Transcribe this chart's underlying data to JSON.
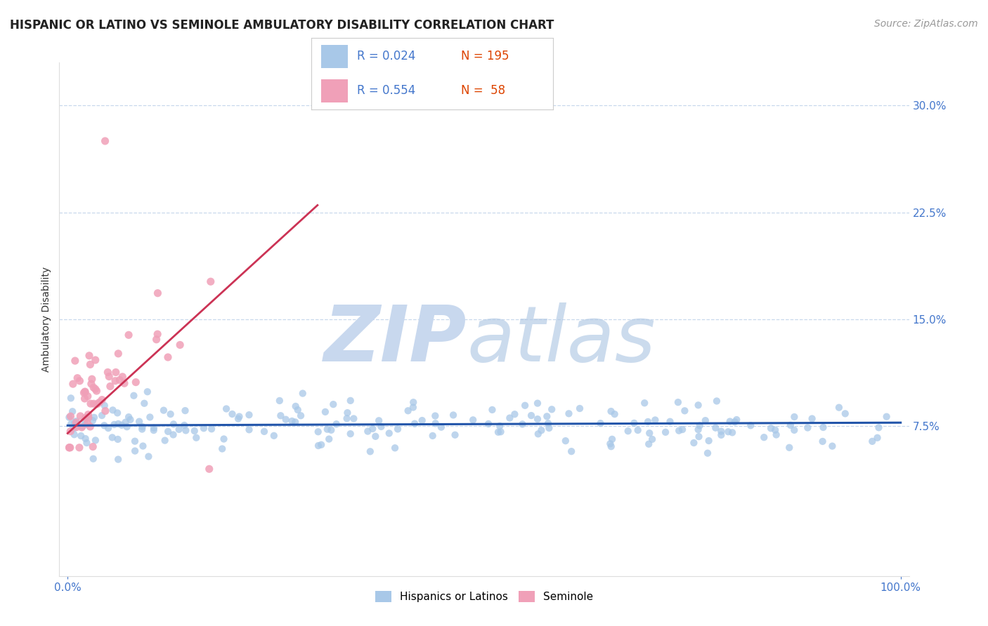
{
  "title": "HISPANIC OR LATINO VS SEMINOLE AMBULATORY DISABILITY CORRELATION CHART",
  "source": "Source: ZipAtlas.com",
  "ylabel": "Ambulatory Disability",
  "xlim": [
    -1,
    101
  ],
  "ylim": [
    -3,
    33
  ],
  "yticks": [
    7.5,
    15.0,
    22.5,
    30.0
  ],
  "ytick_labels": [
    "7.5%",
    "15.0%",
    "22.5%",
    "30.0%"
  ],
  "xtick_labels": [
    "0.0%",
    "100.0%"
  ],
  "legend_r_blue": "R = 0.024",
  "legend_n_blue": "N = 195",
  "legend_r_pink": "R = 0.554",
  "legend_n_pink": "N =  58",
  "blue_color": "#a8c8e8",
  "pink_color": "#f0a0b8",
  "blue_line_color": "#2255aa",
  "pink_line_color": "#cc3355",
  "pink_dash_color": "#cccccc",
  "axis_label_color": "#4477cc",
  "grid_color": "#c8d8ec",
  "watermark_zip_color": "#c8d8ee",
  "watermark_atlas_color": "#b0c8e4",
  "background_color": "#ffffff",
  "title_fontsize": 12,
  "label_fontsize": 10,
  "tick_fontsize": 11,
  "source_fontsize": 10,
  "legend_fontsize": 12,
  "blue_trend_x": [
    0,
    100
  ],
  "blue_trend_y": [
    7.55,
    7.75
  ],
  "pink_trend_x": [
    0,
    30
  ],
  "pink_trend_y": [
    7.0,
    23.0
  ],
  "pink_dash_trend_x": [
    0,
    30
  ],
  "pink_dash_trend_y": [
    7.0,
    23.0
  ]
}
